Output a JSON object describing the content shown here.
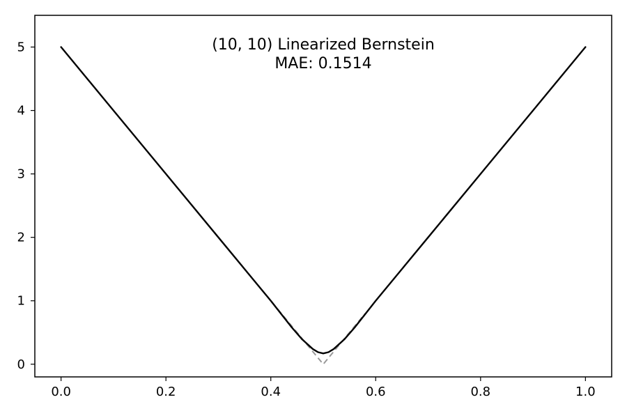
{
  "chart_data": {
    "type": "line",
    "title": "(10, 10) Linearized Bernstein",
    "subtitle": "MAE: 0.1514",
    "xlabel": "",
    "ylabel": "",
    "xlim": [
      -0.05,
      1.05
    ],
    "ylim": [
      -0.2,
      5.5
    ],
    "xticks": [
      0.0,
      0.2,
      0.4,
      0.6,
      0.8,
      1.0
    ],
    "xtick_labels": [
      "0.0",
      "0.2",
      "0.4",
      "0.6",
      "0.8",
      "1.0"
    ],
    "yticks": [
      0,
      1,
      2,
      3,
      4,
      5
    ],
    "ytick_labels": [
      "0",
      "1",
      "2",
      "3",
      "4",
      "5"
    ],
    "grid": false,
    "series": [
      {
        "color": "#000000",
        "style": "solid",
        "x": [
          0.0,
          0.1,
          0.2,
          0.3,
          0.35,
          0.4,
          0.42,
          0.44,
          0.46,
          0.48,
          0.49,
          0.5,
          0.51,
          0.52,
          0.54,
          0.56,
          0.58,
          0.6,
          0.65,
          0.7,
          0.8,
          0.9,
          1.0
        ],
        "y": [
          5.0,
          4.0,
          3.0,
          2.0,
          1.5,
          1.0,
          0.79,
          0.58,
          0.39,
          0.24,
          0.19,
          0.17,
          0.19,
          0.24,
          0.39,
          0.58,
          0.79,
          1.0,
          1.5,
          2.0,
          3.0,
          4.0,
          5.0
        ]
      },
      {
        "color": "#999999",
        "style": "dashed",
        "x": [
          0.38,
          0.5,
          0.58
        ],
        "y": [
          1.2,
          0.0,
          0.8
        ]
      }
    ]
  }
}
